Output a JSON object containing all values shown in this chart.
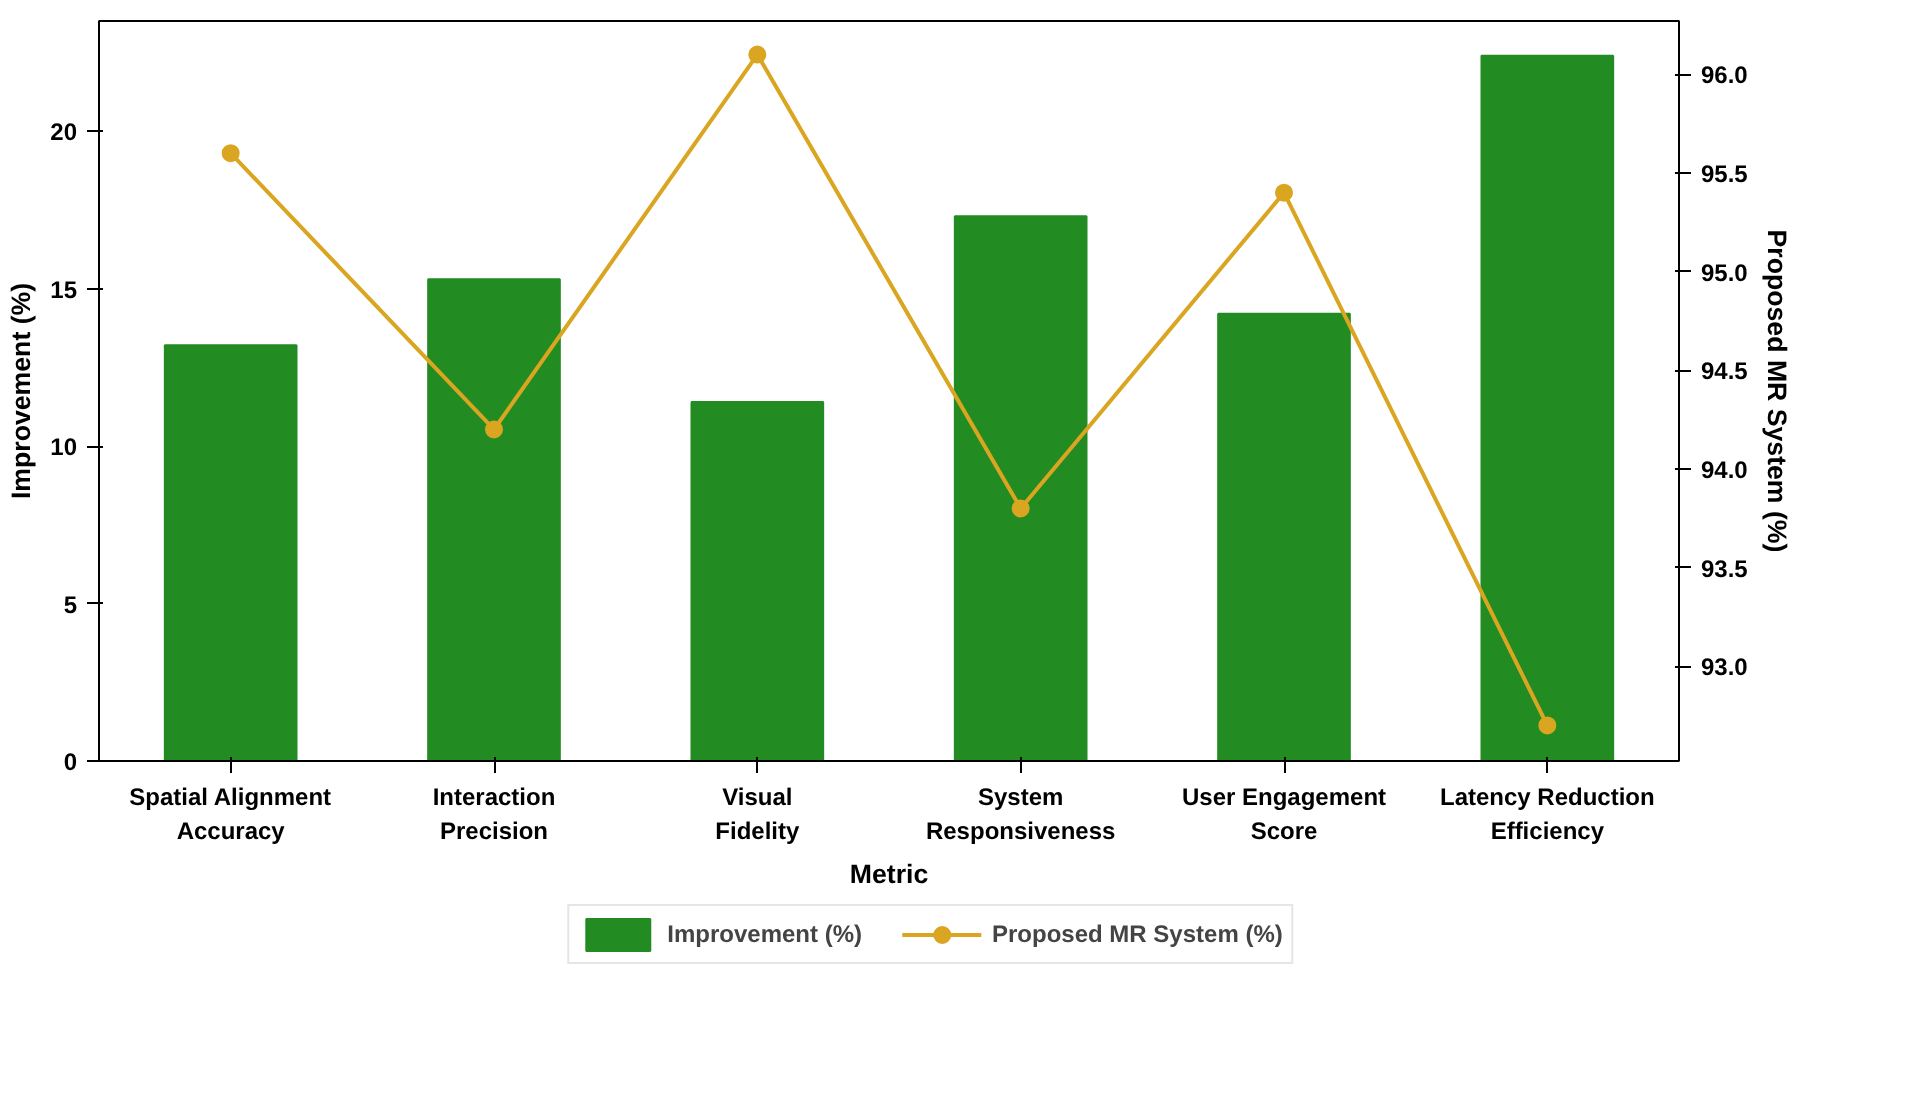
{
  "chart_data": {
    "type": "bar",
    "xlabel": "Metric",
    "ylabel": "Improvement (%)",
    "y2label": "Proposed MR System (%)",
    "categories": [
      "Spatial Alignment Accuracy",
      "Interaction Precision",
      "Visual Fidelity",
      "System Responsiveness",
      "User Engagement Score",
      "Latency Reduction Efficiency"
    ],
    "series": [
      {
        "name": "Improvement (%)",
        "color": "#228b22",
        "values": [
          13.2,
          15.3,
          11.4,
          17.3,
          14.2,
          22.4
        ]
      },
      {
        "name": "Proposed MR System (%)",
        "type": "line",
        "axis": "y2",
        "color": "#daa520",
        "marker": "circle",
        "values": [
          95.6,
          94.2,
          96.1,
          93.8,
          95.4,
          92.7
        ]
      }
    ],
    "ylim": [
      0,
      23.5
    ],
    "yticks": [
      0,
      5,
      10,
      15,
      20
    ],
    "y2lim": [
      92.52,
      96.27
    ],
    "y2ticks": [
      {
        "value": 93,
        "label": "93.0"
      },
      {
        "value": 93.5,
        "label": "93.5"
      },
      {
        "value": 94,
        "label": "94.0"
      },
      {
        "value": 94.5,
        "label": "94.5"
      },
      {
        "value": 95,
        "label": "95.0"
      },
      {
        "value": 95.5,
        "label": "95.5"
      },
      {
        "value": 96,
        "label": "96.0"
      }
    ],
    "grid": false,
    "legend": "bottom"
  }
}
